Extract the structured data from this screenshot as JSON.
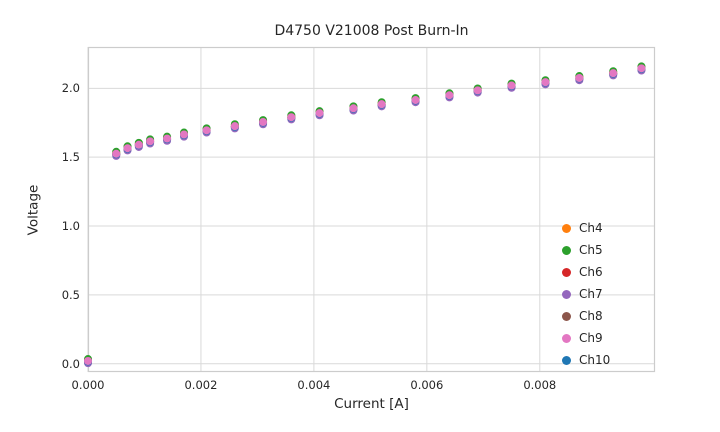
{
  "figure": {
    "background": "#ffffff",
    "grid_color": "#d9d9d9",
    "border_color": "#cccccc"
  },
  "chart_data": {
    "type": "scatter",
    "title": "D4750 V21008 Post Burn-In",
    "xlabel": "Current [A]",
    "ylabel": "Voltage",
    "xlim": [
      0,
      0.01004
    ],
    "ylim": [
      -0.06,
      2.3
    ],
    "grid": true,
    "legend_position": "lower right",
    "xticks": [
      0,
      0.002,
      0.004,
      0.006,
      0.008
    ],
    "xtick_labels": [
      "0.000",
      "0.002",
      "0.004",
      "0.006",
      "0.008"
    ],
    "yticks": [
      0.0,
      0.5,
      1.0,
      1.5,
      2.0
    ],
    "ytick_labels": [
      "0.0",
      "0.5",
      "1.0",
      "1.5",
      "2.0"
    ],
    "marker_size": 4,
    "x": [
      0.0,
      0.0005,
      0.0007,
      0.0009,
      0.0011,
      0.0014,
      0.0017,
      0.0021,
      0.0026,
      0.0031,
      0.0036,
      0.0041,
      0.0047,
      0.0052,
      0.0058,
      0.0064,
      0.0069,
      0.0075,
      0.0081,
      0.0087,
      0.0093,
      0.0098
    ],
    "y_base": [
      0.02,
      1.525,
      1.565,
      1.59,
      1.615,
      1.635,
      1.665,
      1.695,
      1.725,
      1.755,
      1.79,
      1.82,
      1.855,
      1.885,
      1.915,
      1.95,
      1.985,
      2.02,
      2.045,
      2.075,
      2.11,
      2.145
    ],
    "series": [
      {
        "name": "Ch4",
        "color": "#ff7f0e",
        "y_offset": 0.008
      },
      {
        "name": "Ch5",
        "color": "#2ca02c",
        "y_offset": 0.014
      },
      {
        "name": "Ch6",
        "color": "#d62728",
        "y_offset": -0.008
      },
      {
        "name": "Ch7",
        "color": "#9467bd",
        "y_offset": -0.016
      },
      {
        "name": "Ch8",
        "color": "#8c564b",
        "y_offset": 0.0
      },
      {
        "name": "Ch10",
        "color": "#1f77b4",
        "y_offset": -0.004
      },
      {
        "name": "Ch9",
        "color": "#e377c2",
        "y_offset": 0.0
      }
    ],
    "legend_entries": [
      {
        "label": "Ch4",
        "color": "#ff7f0e"
      },
      {
        "label": "Ch5",
        "color": "#2ca02c"
      },
      {
        "label": "Ch6",
        "color": "#d62728"
      },
      {
        "label": "Ch7",
        "color": "#9467bd"
      },
      {
        "label": "Ch8",
        "color": "#8c564b"
      },
      {
        "label": "Ch9",
        "color": "#e377c2"
      },
      {
        "label": "Ch10",
        "color": "#1f77b4"
      }
    ]
  }
}
